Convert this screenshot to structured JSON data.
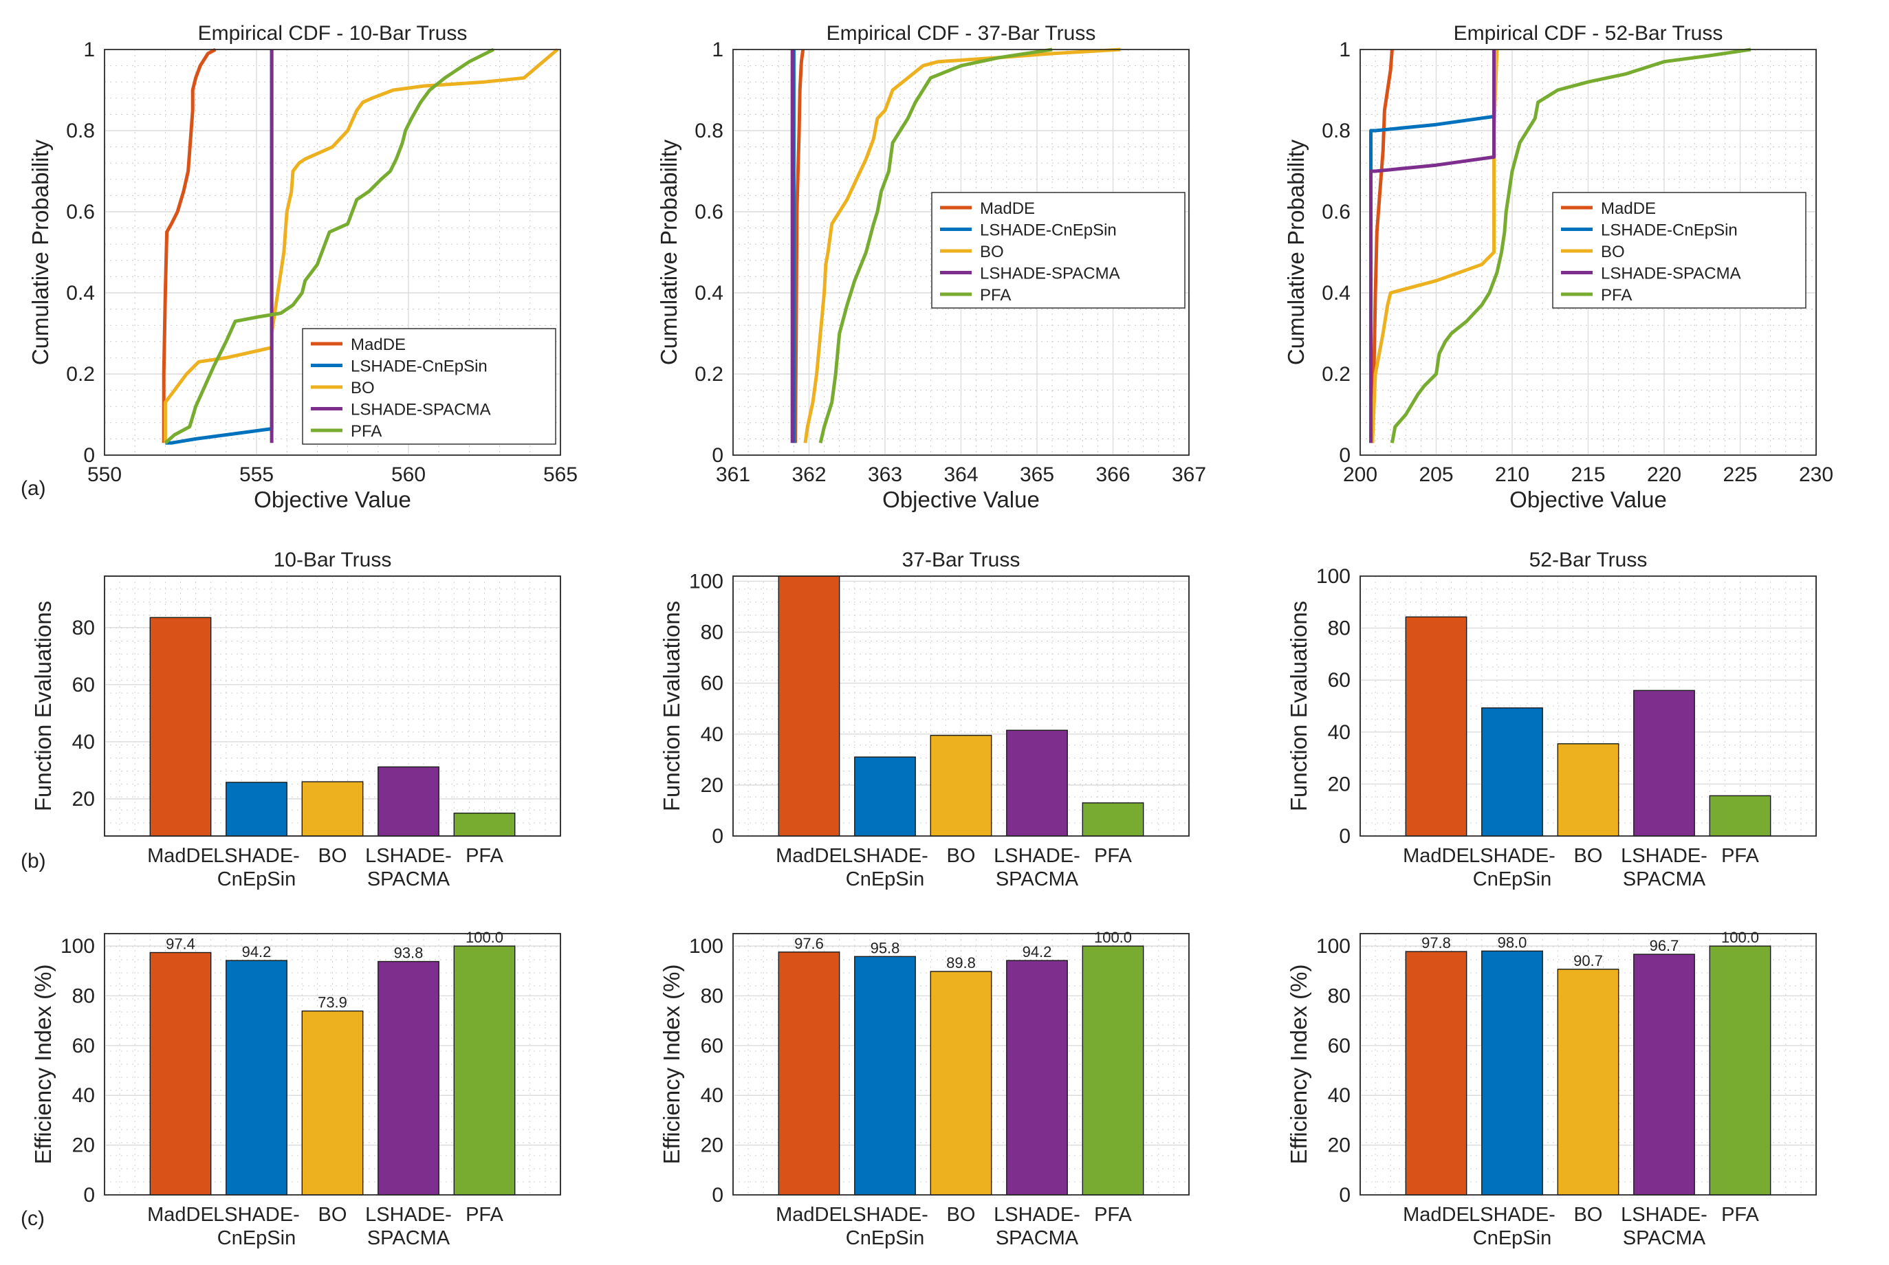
{
  "colors": {
    "MadDE": "#D95319",
    "LSHADE-CnEpSin": "#0072BD",
    "BO": "#EDB120",
    "LSHADE-SPACMA": "#7E2F8E",
    "PFA": "#77AC30"
  },
  "panel_labels": [
    "(a)",
    "(b)",
    "(c)"
  ],
  "chart_data": [
    {
      "type": "line",
      "title": "Empirical CDF - 10-Bar Truss",
      "xlabel": "Objective Value",
      "ylabel": "Cumulative Probability",
      "xlim": [
        550,
        565
      ],
      "xticks": [
        550,
        555,
        560,
        565
      ],
      "ylim": [
        0,
        1
      ],
      "yticks": [
        0,
        0.2,
        0.4,
        0.6,
        0.8,
        1
      ],
      "grid": true,
      "legend": "bottom-right",
      "series": [
        {
          "name": "MadDE",
          "x": [
            551.95,
            551.95,
            552.0,
            552.05,
            552.2,
            552.4,
            552.6,
            552.75,
            552.85,
            552.9,
            552.9,
            553.0,
            553.15,
            553.4,
            553.65
          ],
          "y": [
            0.03,
            0.2,
            0.4,
            0.55,
            0.57,
            0.6,
            0.65,
            0.7,
            0.8,
            0.85,
            0.9,
            0.93,
            0.96,
            0.99,
            1.0
          ]
        },
        {
          "name": "LSHADE-CnEpSin",
          "x": [
            552.0,
            552.2,
            553.0,
            554.0,
            555.5,
            555.5
          ],
          "y": [
            0.03,
            0.03,
            0.04,
            0.05,
            0.065,
            1.0
          ]
        },
        {
          "name": "BO",
          "x": [
            552.0,
            552.0,
            552.3,
            552.7,
            553.1,
            554.0,
            555.5,
            555.5,
            555.7,
            555.9,
            556.0,
            556.15,
            556.2,
            556.4,
            556.6,
            557.5,
            558.0,
            558.3,
            558.5,
            558.8,
            559.5,
            560.5,
            562.5,
            563.8,
            564.9
          ],
          "y": [
            0.03,
            0.13,
            0.16,
            0.2,
            0.23,
            0.24,
            0.265,
            0.3,
            0.4,
            0.5,
            0.6,
            0.65,
            0.7,
            0.72,
            0.73,
            0.76,
            0.8,
            0.85,
            0.87,
            0.88,
            0.9,
            0.91,
            0.92,
            0.93,
            1.0
          ]
        },
        {
          "name": "LSHADE-SPACMA",
          "x": [
            555.5,
            555.5
          ],
          "y": [
            0.03,
            1.0
          ]
        },
        {
          "name": "PFA",
          "x": [
            552.0,
            552.3,
            552.8,
            553.0,
            553.3,
            553.6,
            554.0,
            554.3,
            555.0,
            555.8,
            556.2,
            556.5,
            556.6,
            556.8,
            557.0,
            557.3,
            557.4,
            558.0,
            558.3,
            558.7,
            559.1,
            559.4,
            559.6,
            559.8,
            559.9,
            560.1,
            560.4,
            560.7,
            561.2,
            562.0,
            562.8
          ],
          "y": [
            0.03,
            0.05,
            0.07,
            0.12,
            0.17,
            0.22,
            0.28,
            0.33,
            0.34,
            0.35,
            0.37,
            0.4,
            0.43,
            0.45,
            0.47,
            0.53,
            0.55,
            0.57,
            0.63,
            0.65,
            0.68,
            0.7,
            0.73,
            0.77,
            0.8,
            0.83,
            0.87,
            0.9,
            0.93,
            0.97,
            1.0
          ]
        }
      ]
    },
    {
      "type": "line",
      "title": "Empirical CDF - 37-Bar Truss",
      "xlabel": "Objective Value",
      "ylabel": "Cumulative Probability",
      "xlim": [
        361,
        367
      ],
      "xticks": [
        361,
        362,
        363,
        364,
        365,
        366,
        367
      ],
      "ylim": [
        0,
        1
      ],
      "yticks": [
        0,
        0.2,
        0.4,
        0.6,
        0.8,
        1
      ],
      "grid": true,
      "legend": "center-right",
      "series": [
        {
          "name": "MadDE",
          "x": [
            361.82,
            361.83,
            361.84,
            361.87,
            361.88,
            361.9,
            361.92
          ],
          "y": [
            0.03,
            0.3,
            0.6,
            0.8,
            0.9,
            0.97,
            1.0
          ]
        },
        {
          "name": "LSHADE-CnEpSin",
          "x": [
            361.8,
            361.8
          ],
          "y": [
            0.03,
            1.0
          ]
        },
        {
          "name": "BO",
          "x": [
            361.95,
            361.98,
            362.05,
            362.1,
            362.15,
            362.2,
            362.22,
            362.25,
            362.3,
            362.4,
            362.5,
            362.6,
            362.75,
            362.85,
            362.9,
            363.0,
            363.1,
            363.3,
            363.5,
            363.7,
            364.5,
            365.2,
            366.1
          ],
          "y": [
            0.03,
            0.07,
            0.13,
            0.2,
            0.3,
            0.4,
            0.47,
            0.5,
            0.57,
            0.6,
            0.63,
            0.67,
            0.73,
            0.78,
            0.83,
            0.85,
            0.9,
            0.93,
            0.96,
            0.97,
            0.98,
            0.99,
            1.0
          ]
        },
        {
          "name": "LSHADE-SPACMA",
          "x": [
            361.78,
            361.78
          ],
          "y": [
            0.03,
            1.0
          ]
        },
        {
          "name": "PFA",
          "x": [
            362.15,
            362.2,
            362.3,
            362.35,
            362.4,
            362.5,
            362.6,
            362.75,
            362.85,
            362.9,
            362.95,
            363.05,
            363.1,
            363.2,
            363.3,
            363.4,
            363.6,
            364.0,
            364.5,
            365.2
          ],
          "y": [
            0.03,
            0.07,
            0.13,
            0.2,
            0.3,
            0.37,
            0.43,
            0.5,
            0.57,
            0.6,
            0.65,
            0.7,
            0.77,
            0.8,
            0.83,
            0.87,
            0.93,
            0.96,
            0.98,
            1.0
          ]
        }
      ]
    },
    {
      "type": "line",
      "title": "Empirical CDF - 52-Bar Truss",
      "xlabel": "Objective Value",
      "ylabel": "Cumulative Probability",
      "xlim": [
        200,
        230
      ],
      "xticks": [
        200,
        205,
        210,
        215,
        220,
        225,
        230
      ],
      "ylim": [
        0,
        1
      ],
      "yticks": [
        0,
        0.2,
        0.4,
        0.6,
        0.8,
        1
      ],
      "grid": true,
      "legend": "center-right",
      "series": [
        {
          "name": "MadDE",
          "x": [
            200.8,
            200.9,
            201.0,
            201.1,
            201.2,
            201.3,
            201.5,
            201.6,
            201.8,
            202.0,
            202.1
          ],
          "y": [
            0.03,
            0.2,
            0.4,
            0.55,
            0.6,
            0.65,
            0.75,
            0.85,
            0.9,
            0.95,
            1.0
          ]
        },
        {
          "name": "LSHADE-CnEpSin",
          "x": [
            200.7,
            200.7,
            201.0,
            205.0,
            208.8,
            208.8
          ],
          "y": [
            0.03,
            0.8,
            0.8,
            0.815,
            0.835,
            1.0
          ]
        },
        {
          "name": "BO",
          "x": [
            200.8,
            201.0,
            201.5,
            201.8,
            202.0,
            205.0,
            208.0,
            208.8,
            208.8,
            209.0
          ],
          "y": [
            0.03,
            0.2,
            0.3,
            0.37,
            0.4,
            0.43,
            0.47,
            0.5,
            0.8,
            1.0
          ]
        },
        {
          "name": "LSHADE-SPACMA",
          "x": [
            200.7,
            200.7,
            201.0,
            205.0,
            208.8,
            208.8
          ],
          "y": [
            0.03,
            0.7,
            0.7,
            0.715,
            0.735,
            1.0
          ]
        },
        {
          "name": "PFA",
          "x": [
            202.1,
            202.3,
            203.0,
            203.8,
            204.2,
            205.0,
            205.2,
            205.6,
            206.0,
            207.0,
            208.0,
            208.5,
            209.0,
            209.3,
            209.5,
            209.6,
            210.0,
            210.5,
            211.5,
            211.7,
            213.0,
            215.0,
            217.5,
            220.0,
            223.0,
            225.7
          ],
          "y": [
            0.03,
            0.07,
            0.1,
            0.15,
            0.17,
            0.2,
            0.25,
            0.28,
            0.3,
            0.33,
            0.37,
            0.4,
            0.45,
            0.5,
            0.55,
            0.6,
            0.7,
            0.77,
            0.83,
            0.87,
            0.9,
            0.92,
            0.94,
            0.97,
            0.985,
            1.0
          ]
        }
      ]
    },
    {
      "type": "bar",
      "title": "10-Bar Truss",
      "ylabel": "Function Evaluations",
      "categories": [
        "MadDE",
        "LSHADE-CnEpSin",
        "BO",
        "LSHADE-SPACMA",
        "PFA"
      ],
      "category_lines": [
        [
          "MadDE"
        ],
        [
          "LSHADE-",
          "CnEpSin"
        ],
        [
          "BO"
        ],
        [
          "LSHADE-",
          "SPACMA"
        ],
        [
          "PFA"
        ]
      ],
      "values": [
        83.5,
        25.8,
        26.0,
        31.2,
        15.0
      ],
      "ylim": [
        7,
        98
      ],
      "yticks": [
        20,
        40,
        60,
        80
      ],
      "grid": true
    },
    {
      "type": "bar",
      "title": "37-Bar Truss",
      "ylabel": "Function Evaluations",
      "categories": [
        "MadDE",
        "LSHADE-CnEpSin",
        "BO",
        "LSHADE-SPACMA",
        "PFA"
      ],
      "category_lines": [
        [
          "MadDE"
        ],
        [
          "LSHADE-",
          "CnEpSin"
        ],
        [
          "BO"
        ],
        [
          "LSHADE-",
          "SPACMA"
        ],
        [
          "PFA"
        ]
      ],
      "values": [
        102,
        31.0,
        39.5,
        41.5,
        13.0
      ],
      "ylim": [
        0,
        102
      ],
      "yticks": [
        0,
        20,
        40,
        60,
        80,
        100
      ],
      "grid": true
    },
    {
      "type": "bar",
      "title": "52-Bar Truss",
      "ylabel": "Function Evaluations",
      "categories": [
        "MadDE",
        "LSHADE-CnEpSin",
        "BO",
        "LSHADE-SPACMA",
        "PFA"
      ],
      "category_lines": [
        [
          "MadDE"
        ],
        [
          "LSHADE-",
          "CnEpSin"
        ],
        [
          "BO"
        ],
        [
          "LSHADE-",
          "SPACMA"
        ],
        [
          "PFA"
        ]
      ],
      "values": [
        84.3,
        49.3,
        35.5,
        56.0,
        15.5
      ],
      "ylim": [
        0,
        100
      ],
      "yticks": [
        0,
        20,
        40,
        60,
        80,
        100
      ],
      "grid": true
    },
    {
      "type": "bar",
      "title": "",
      "ylabel": "Efficiency Index (%)",
      "categories": [
        "MadDE",
        "LSHADE-CnEpSin",
        "BO",
        "LSHADE-SPACMA",
        "PFA"
      ],
      "category_lines": [
        [
          "MadDE"
        ],
        [
          "LSHADE-",
          "CnEpSin"
        ],
        [
          "BO"
        ],
        [
          "LSHADE-",
          "SPACMA"
        ],
        [
          "PFA"
        ]
      ],
      "values": [
        97.4,
        94.2,
        73.9,
        93.8,
        100.0
      ],
      "labels": [
        "97.4",
        "94.2",
        "73.9",
        "93.8",
        "100.0"
      ],
      "ylim": [
        0,
        105
      ],
      "yticks": [
        0,
        20,
        40,
        60,
        80,
        100
      ],
      "grid": true
    },
    {
      "type": "bar",
      "title": "",
      "ylabel": "Efficiency Index (%)",
      "categories": [
        "MadDE",
        "LSHADE-CnEpSin",
        "BO",
        "LSHADE-SPACMA",
        "PFA"
      ],
      "category_lines": [
        [
          "MadDE"
        ],
        [
          "LSHADE-",
          "CnEpSin"
        ],
        [
          "BO"
        ],
        [
          "LSHADE-",
          "SPACMA"
        ],
        [
          "PFA"
        ]
      ],
      "values": [
        97.6,
        95.8,
        89.8,
        94.2,
        100.0
      ],
      "labels": [
        "97.6",
        "95.8",
        "89.8",
        "94.2",
        "100.0"
      ],
      "ylim": [
        0,
        105
      ],
      "yticks": [
        0,
        20,
        40,
        60,
        80,
        100
      ],
      "grid": true
    },
    {
      "type": "bar",
      "title": "",
      "ylabel": "Efficiency Index (%)",
      "categories": [
        "MadDE",
        "LSHADE-CnEpSin",
        "BO",
        "LSHADE-SPACMA",
        "PFA"
      ],
      "category_lines": [
        [
          "MadDE"
        ],
        [
          "LSHADE-",
          "CnEpSin"
        ],
        [
          "BO"
        ],
        [
          "LSHADE-",
          "SPACMA"
        ],
        [
          "PFA"
        ]
      ],
      "values": [
        97.8,
        98.0,
        90.7,
        96.7,
        100.0
      ],
      "labels": [
        "97.8",
        "98.0",
        "90.7",
        "96.7",
        "100.0"
      ],
      "ylim": [
        0,
        105
      ],
      "yticks": [
        0,
        20,
        40,
        60,
        80,
        100
      ],
      "grid": true
    }
  ]
}
